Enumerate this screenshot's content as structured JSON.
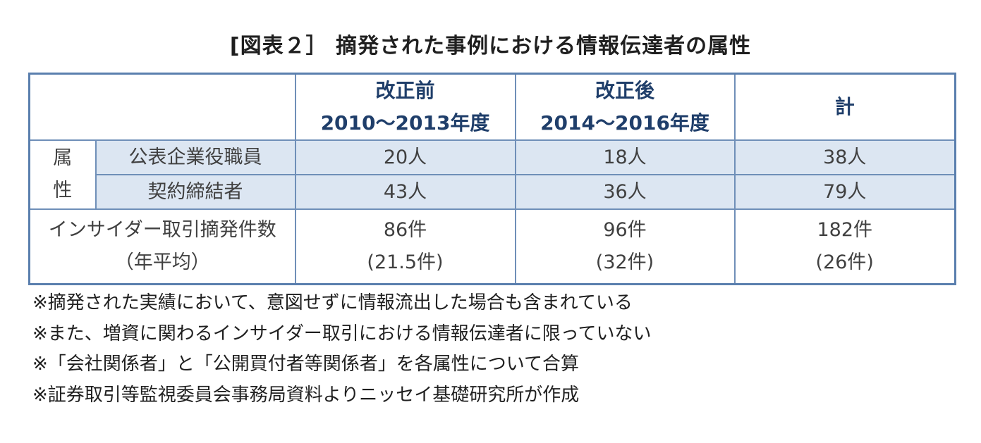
{
  "title": "[図表２］ 摘発された事例における情報伝達者の属性",
  "table": {
    "header": {
      "col_before_line1": "改正前",
      "col_before_line2": "2010～2013年度",
      "col_after_line1": "改正後",
      "col_after_line2": "2014～2016年度",
      "col_total": "計"
    },
    "attribute_label_line1": "属",
    "attribute_label_line2": "性",
    "rows": [
      {
        "label": "公表企業役職員",
        "before": "20人",
        "after": "18人",
        "total": "38人"
      },
      {
        "label": "契約締結者",
        "before": "43人",
        "after": "36人",
        "total": "79人"
      }
    ],
    "summary": {
      "label_line1": "インサイダー取引摘発件数",
      "label_line2": "（年平均）",
      "before_line1": "86件",
      "before_line2": "(21.5件)",
      "after_line1": "96件",
      "after_line2": "(32件)",
      "total_line1": "182件",
      "total_line2": "(26件)"
    }
  },
  "notes": [
    "※摘発された実績において、意図せずに情報流出した場合も含まれている",
    "※また、増資に関わるインサイダー取引における情報伝達者に限っていない",
    "※「会社関係者」と「公開買付者等関係者」を各属性について合算",
    "※証券取引等監視委員会事務局資料よりニッセイ基礎研究所が作成"
  ],
  "colors": {
    "border": "#6f8fb8",
    "row_fill": "#dce6f2",
    "header_text": "#1f3e6a"
  }
}
